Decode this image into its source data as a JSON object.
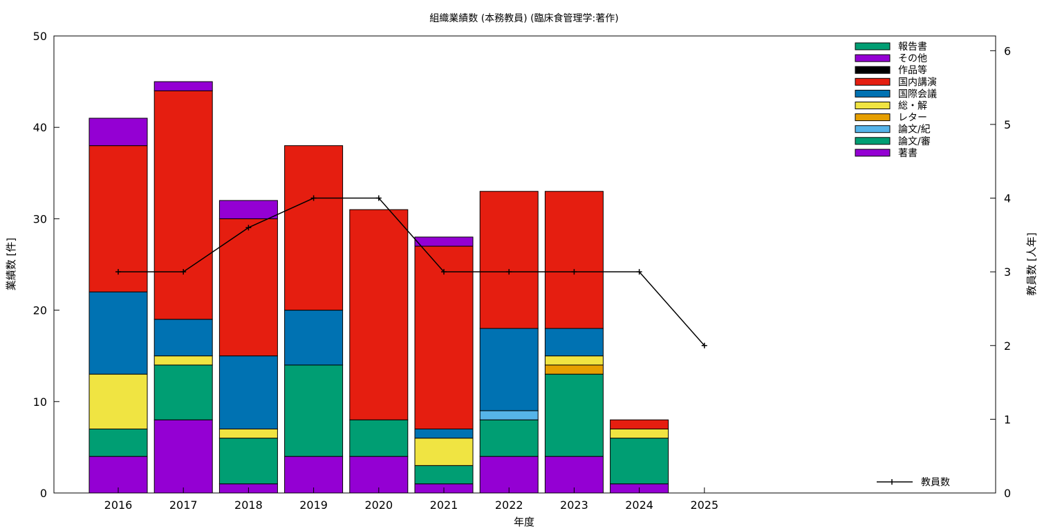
{
  "chart_data": {
    "type": "bar",
    "stacked": true,
    "title": "組織業績数 (本務教員) (臨床食管理学:著作)",
    "xlabel": "年度",
    "ylabel": "業績数 [件]",
    "y2label": "教員数 [人年]",
    "ylim": [
      0,
      50
    ],
    "y2lim": [
      0,
      6.2
    ],
    "yticks": [
      "0",
      "10",
      "20",
      "30",
      "40",
      "50"
    ],
    "y2ticks": [
      "0",
      "1",
      "2",
      "3",
      "4",
      "5",
      "6"
    ],
    "categories": [
      "2016",
      "2017",
      "2018",
      "2019",
      "2020",
      "2021",
      "2022",
      "2023",
      "2024",
      "2025"
    ],
    "legend_position": "top-right",
    "grid": false,
    "series": [
      {
        "name": "著書",
        "color": "#9400d3",
        "values": [
          4,
          8,
          1,
          4,
          4,
          1,
          4,
          4,
          1,
          0
        ]
      },
      {
        "name": "論文/審",
        "color": "#009e73",
        "values": [
          3,
          6,
          5,
          10,
          4,
          2,
          4,
          9,
          5,
          0
        ]
      },
      {
        "name": "論文/紀",
        "color": "#56b4e9",
        "values": [
          0,
          0,
          0,
          0,
          0,
          0,
          1,
          0,
          0,
          0
        ]
      },
      {
        "name": "レター",
        "color": "#e69f00",
        "values": [
          0,
          0,
          0,
          0,
          0,
          0,
          0,
          1,
          0,
          0
        ]
      },
      {
        "name": "総・解",
        "color": "#f0e442",
        "values": [
          6,
          1,
          1,
          0,
          0,
          3,
          0,
          1,
          1,
          0
        ]
      },
      {
        "name": "国際会議",
        "color": "#0072b2",
        "values": [
          9,
          4,
          8,
          6,
          0,
          1,
          9,
          3,
          0,
          0
        ]
      },
      {
        "name": "国内講演",
        "color": "#e51e10",
        "values": [
          16,
          25,
          15,
          18,
          23,
          20,
          15,
          15,
          1,
          0
        ]
      },
      {
        "name": "作品等",
        "color": "#000000",
        "values": [
          0,
          0,
          0,
          0,
          0,
          0,
          0,
          0,
          0,
          0
        ]
      },
      {
        "name": "その他",
        "color": "#9400d3",
        "values": [
          3,
          1,
          2,
          0,
          0,
          1,
          0,
          0,
          0,
          0
        ]
      },
      {
        "name": "報告書",
        "color": "#009e73",
        "values": [
          0,
          0,
          0,
          0,
          0,
          0,
          0,
          0,
          0,
          0
        ]
      }
    ],
    "line_series": {
      "name": "教員数",
      "color": "#000000",
      "axis": "y2",
      "values": [
        3,
        3,
        3.6,
        4,
        4,
        3,
        3,
        3,
        3,
        2
      ]
    }
  }
}
